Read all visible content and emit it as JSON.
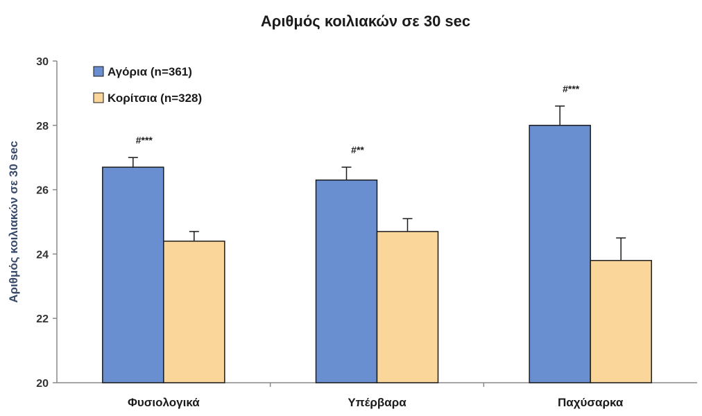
{
  "chart_data": {
    "type": "bar",
    "title": "Αριθμός κοιλιακών σε 30 sec",
    "xlabel": "",
    "ylabel": "Αριθμός κοιλιακών σε 30 sec",
    "ylim": [
      20,
      30
    ],
    "yticks": [
      "20",
      "22",
      "24",
      "26",
      "28",
      "30"
    ],
    "categories": [
      "Φυσιολογικά",
      "Υπέρβαρα",
      "Παχύσαρκα"
    ],
    "series": [
      {
        "name": "Αγόρια (n=361)",
        "color": "#6a8fd0",
        "values": [
          26.7,
          26.3,
          28.0
        ],
        "errors": [
          0.3,
          0.4,
          0.6
        ]
      },
      {
        "name": "Κορίτσια (n=328)",
        "color": "#fad69b",
        "values": [
          24.4,
          24.7,
          23.8
        ],
        "errors": [
          0.3,
          0.4,
          0.7
        ]
      }
    ],
    "annotations": [
      "#***",
      "#**",
      "#***"
    ],
    "legend": "top-left",
    "grid": false
  }
}
